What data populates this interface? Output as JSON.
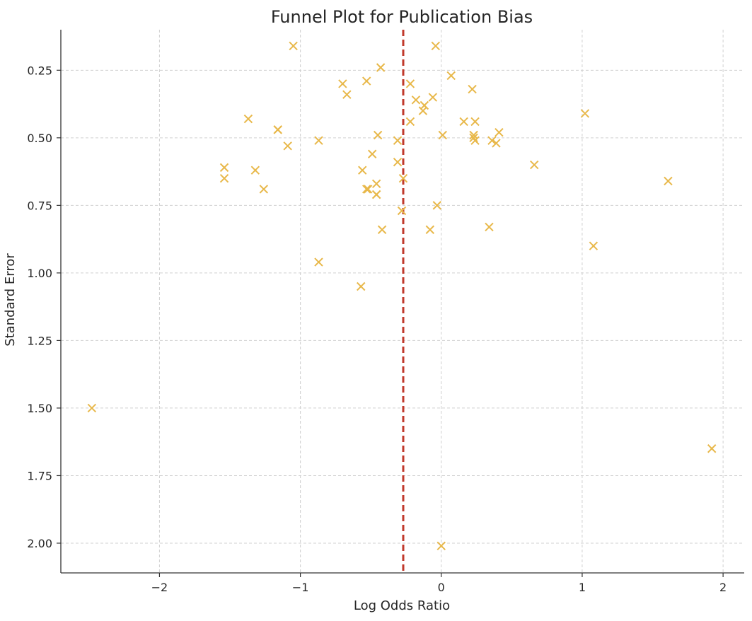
{
  "chart_data": {
    "type": "scatter",
    "title": "Funnel Plot for Publication Bias",
    "xlabel": "Log Odds Ratio",
    "ylabel": "Standard Error",
    "xlim": [
      -2.7,
      2.15
    ],
    "ylim": [
      2.11,
      0.1
    ],
    "y_inverted": true,
    "grid": true,
    "x_ticks": [
      -2,
      -1,
      0,
      1,
      2
    ],
    "x_tick_labels": [
      "−2",
      "−1",
      "0",
      "1",
      "2"
    ],
    "y_ticks": [
      0.25,
      0.5,
      0.75,
      1.0,
      1.25,
      1.5,
      1.75,
      2.0
    ],
    "y_tick_labels": [
      "0.25",
      "0.50",
      "0.75",
      "1.00",
      "1.25",
      "1.50",
      "1.75",
      "2.00"
    ],
    "reference_line": {
      "orientation": "vertical",
      "x": -0.27,
      "style": "dashed",
      "color": "#c0392b"
    },
    "marker": "x",
    "marker_color": "#e8b84a",
    "points": [
      {
        "x": -1.05,
        "y": 0.16
      },
      {
        "x": -0.04,
        "y": 0.16
      },
      {
        "x": -0.43,
        "y": 0.24
      },
      {
        "x": 0.07,
        "y": 0.27
      },
      {
        "x": -0.7,
        "y": 0.3
      },
      {
        "x": -0.53,
        "y": 0.29
      },
      {
        "x": -0.22,
        "y": 0.3
      },
      {
        "x": 0.22,
        "y": 0.32
      },
      {
        "x": -0.67,
        "y": 0.34
      },
      {
        "x": -0.18,
        "y": 0.36
      },
      {
        "x": -0.06,
        "y": 0.35
      },
      {
        "x": -0.12,
        "y": 0.38
      },
      {
        "x": -0.13,
        "y": 0.4
      },
      {
        "x": 1.02,
        "y": 0.41
      },
      {
        "x": -1.37,
        "y": 0.43
      },
      {
        "x": 0.16,
        "y": 0.44
      },
      {
        "x": 0.24,
        "y": 0.44
      },
      {
        "x": -0.22,
        "y": 0.44
      },
      {
        "x": -1.16,
        "y": 0.47
      },
      {
        "x": -1.16,
        "y": 0.47
      },
      {
        "x": 0.41,
        "y": 0.48
      },
      {
        "x": -0.45,
        "y": 0.49
      },
      {
        "x": 0.01,
        "y": 0.49
      },
      {
        "x": 0.23,
        "y": 0.49
      },
      {
        "x": 0.23,
        "y": 0.5
      },
      {
        "x": 0.24,
        "y": 0.51
      },
      {
        "x": -0.31,
        "y": 0.51
      },
      {
        "x": -0.87,
        "y": 0.51
      },
      {
        "x": 0.36,
        "y": 0.51
      },
      {
        "x": 0.39,
        "y": 0.52
      },
      {
        "x": -1.09,
        "y": 0.53
      },
      {
        "x": -0.49,
        "y": 0.56
      },
      {
        "x": -0.31,
        "y": 0.59
      },
      {
        "x": 0.66,
        "y": 0.6
      },
      {
        "x": -1.54,
        "y": 0.61
      },
      {
        "x": -1.32,
        "y": 0.62
      },
      {
        "x": -0.56,
        "y": 0.62
      },
      {
        "x": -1.54,
        "y": 0.65
      },
      {
        "x": -0.27,
        "y": 0.65
      },
      {
        "x": 1.61,
        "y": 0.66
      },
      {
        "x": -0.46,
        "y": 0.67
      },
      {
        "x": -1.26,
        "y": 0.69
      },
      {
        "x": -0.53,
        "y": 0.69
      },
      {
        "x": -0.52,
        "y": 0.69
      },
      {
        "x": -0.46,
        "y": 0.71
      },
      {
        "x": -0.46,
        "y": 0.71
      },
      {
        "x": -0.03,
        "y": 0.75
      },
      {
        "x": -0.28,
        "y": 0.77
      },
      {
        "x": 0.34,
        "y": 0.83
      },
      {
        "x": -0.42,
        "y": 0.84
      },
      {
        "x": -0.08,
        "y": 0.84
      },
      {
        "x": 1.08,
        "y": 0.9
      },
      {
        "x": -0.87,
        "y": 0.96
      },
      {
        "x": -0.57,
        "y": 1.05
      },
      {
        "x": -2.48,
        "y": 1.5
      },
      {
        "x": 1.92,
        "y": 1.65
      },
      {
        "x": 0.0,
        "y": 2.01
      }
    ]
  }
}
